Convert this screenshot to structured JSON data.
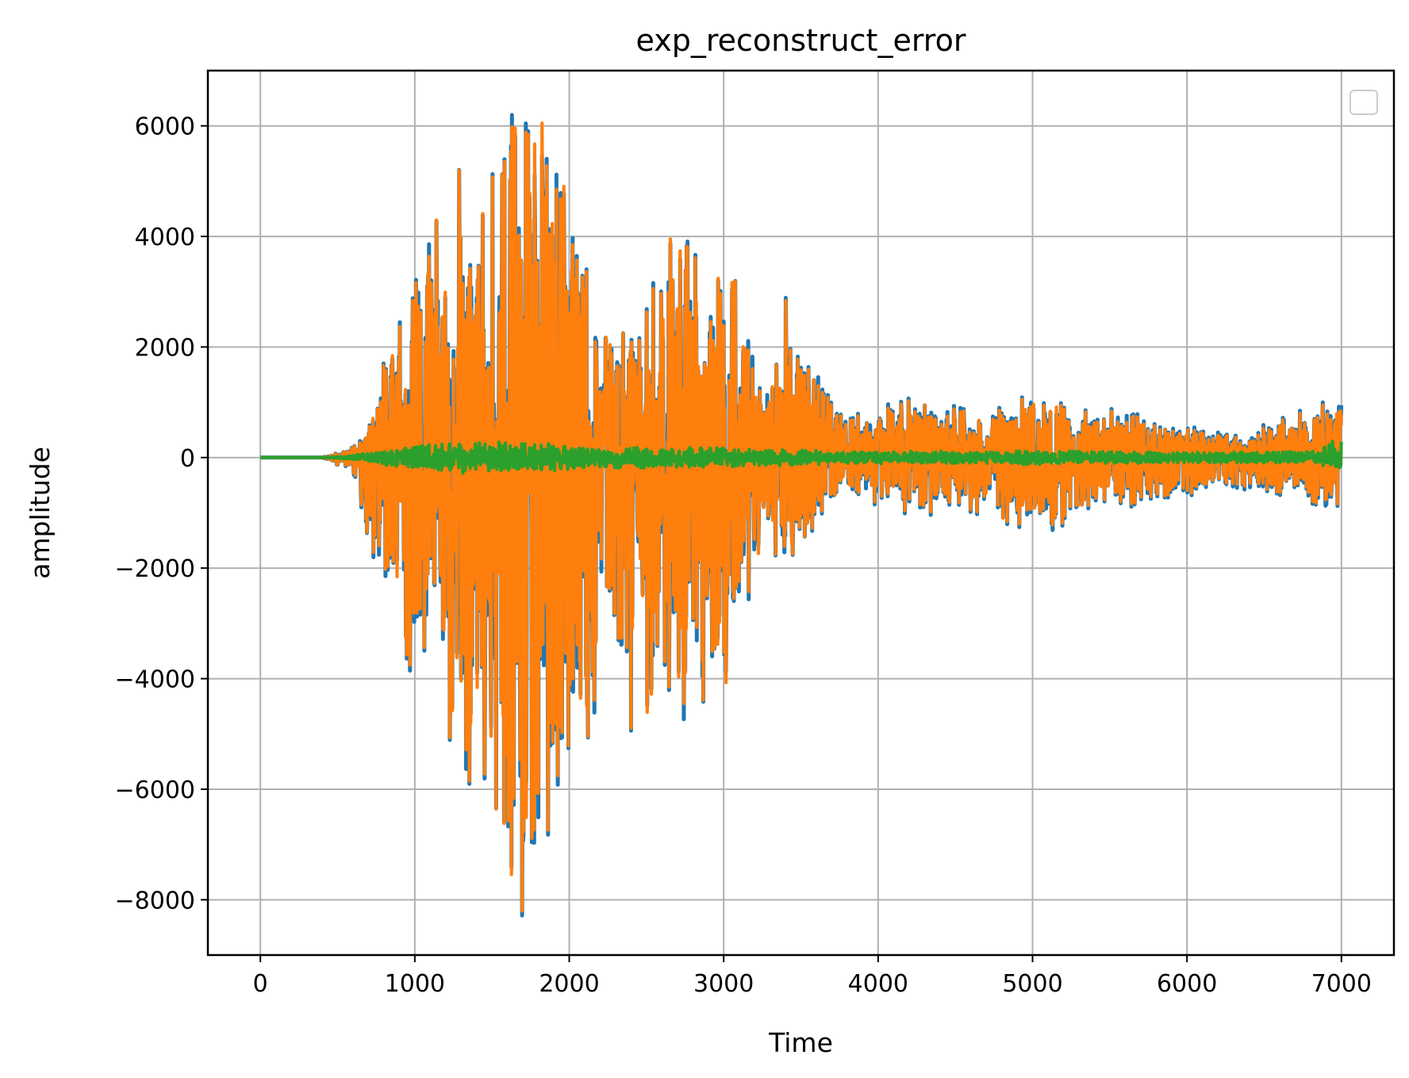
{
  "chart_data": {
    "type": "line",
    "title": "exp_reconstruct_error",
    "xlabel": "Time",
    "ylabel": "amplitude",
    "xlim": [
      -340,
      7340
    ],
    "ylim": [
      -9000,
      7000
    ],
    "xticks": [
      0,
      1000,
      2000,
      3000,
      4000,
      5000,
      6000,
      7000
    ],
    "xtick_labels": [
      "0",
      "1000",
      "2000",
      "3000",
      "4000",
      "5000",
      "6000",
      "7000"
    ],
    "yticks": [
      -8000,
      -6000,
      -4000,
      -2000,
      0,
      2000,
      4000,
      6000
    ],
    "ytick_labels": [
      "−8000",
      "−6000",
      "−4000",
      "−2000",
      "0",
      "2000",
      "4000",
      "6000"
    ],
    "grid": true,
    "legend": {
      "placement": "top-right",
      "entries": []
    },
    "n_points": 7000,
    "envelope_x": [
      0,
      400,
      600,
      700,
      800,
      900,
      1000,
      1100,
      1200,
      1300,
      1400,
      1500,
      1600,
      1700,
      1800,
      1900,
      2000,
      2100,
      2200,
      2300,
      2400,
      2500,
      2600,
      2700,
      2800,
      2900,
      3000,
      3100,
      3200,
      3300,
      3400,
      3500,
      3600,
      3700,
      3800,
      3900,
      4000,
      4200,
      4400,
      4600,
      4800,
      5000,
      5200,
      5400,
      5600,
      5800,
      6000,
      6200,
      6400,
      6600,
      6800,
      7000
    ],
    "series": [
      {
        "color": "#1f77b4",
        "upper": [
          0,
          0,
          250,
          550,
          1800,
          2600,
          3400,
          4700,
          4200,
          5800,
          4000,
          5200,
          6600,
          6500,
          6800,
          6900,
          5500,
          4300,
          2700,
          3100,
          2200,
          2900,
          4300,
          4000,
          4500,
          3700,
          4400,
          3500,
          2200,
          2000,
          3000,
          1900,
          1700,
          1100,
          1000,
          800,
          900,
          1200,
          1000,
          900,
          1000,
          1400,
          1200,
          800,
          1100,
          700,
          600,
          500,
          500,
          800,
          900,
          1300
        ],
        "lower": [
          0,
          0,
          -300,
          -1600,
          -2600,
          -3300,
          -4300,
          -4800,
          -5300,
          -5400,
          -6700,
          -7600,
          -8300,
          -8700,
          -8300,
          -6900,
          -5200,
          -5700,
          -4500,
          -4400,
          -5000,
          -5100,
          -5100,
          -5000,
          -4800,
          -4500,
          -4800,
          -3500,
          -2600,
          -2200,
          -2200,
          -1800,
          -1200,
          -800,
          -900,
          -700,
          -1100,
          -1000,
          -1100,
          -1000,
          -1200,
          -1500,
          -1300,
          -1000,
          -1000,
          -800,
          -700,
          -650,
          -600,
          -700,
          -900,
          -1200
        ]
      },
      {
        "color": "#ff7f0e",
        "upper": [
          0,
          0,
          240,
          530,
          1750,
          2550,
          3350,
          4650,
          4150,
          5750,
          3950,
          5150,
          6550,
          6450,
          6750,
          6850,
          5450,
          4250,
          2650,
          3050,
          2150,
          2850,
          4250,
          3950,
          4450,
          3650,
          4350,
          3450,
          2150,
          1950,
          2950,
          1850,
          1650,
          1050,
          950,
          750,
          850,
          1150,
          950,
          850,
          950,
          1350,
          1150,
          750,
          1050,
          650,
          550,
          450,
          450,
          750,
          850,
          1250
        ],
        "lower": [
          0,
          0,
          -290,
          -1550,
          -2550,
          -3250,
          -4250,
          -4750,
          -5250,
          -5350,
          -6650,
          -7550,
          -8250,
          -8650,
          -8250,
          -6850,
          -5150,
          -5650,
          -4450,
          -4350,
          -4950,
          -5050,
          -5050,
          -4950,
          -4750,
          -4450,
          -4750,
          -3450,
          -2550,
          -2150,
          -2150,
          -1750,
          -1150,
          -750,
          -850,
          -650,
          -1050,
          -950,
          -1050,
          -950,
          -1150,
          -1450,
          -1250,
          -950,
          -950,
          -750,
          -650,
          -600,
          -550,
          -650,
          -850,
          -1150
        ]
      },
      {
        "color": "#2ca02c",
        "upper": [
          0,
          0,
          40,
          100,
          150,
          200,
          220,
          260,
          280,
          300,
          270,
          300,
          280,
          270,
          250,
          260,
          240,
          220,
          200,
          200,
          190,
          200,
          200,
          190,
          190,
          180,
          190,
          170,
          150,
          150,
          160,
          140,
          130,
          120,
          120,
          110,
          120,
          120,
          120,
          110,
          120,
          130,
          120,
          110,
          120,
          110,
          100,
          100,
          100,
          110,
          110,
          400
        ],
        "lower": [
          0,
          0,
          -40,
          -100,
          -150,
          -200,
          -220,
          -260,
          -280,
          -300,
          -270,
          -300,
          -280,
          -270,
          -250,
          -260,
          -240,
          -220,
          -200,
          -200,
          -190,
          -200,
          -200,
          -190,
          -190,
          -180,
          -190,
          -170,
          -150,
          -150,
          -160,
          -140,
          -130,
          -120,
          -120,
          -110,
          -120,
          -120,
          -120,
          -110,
          -120,
          -130,
          -120,
          -110,
          -120,
          -110,
          -100,
          -100,
          -100,
          -110,
          -110,
          -200
        ]
      }
    ]
  }
}
